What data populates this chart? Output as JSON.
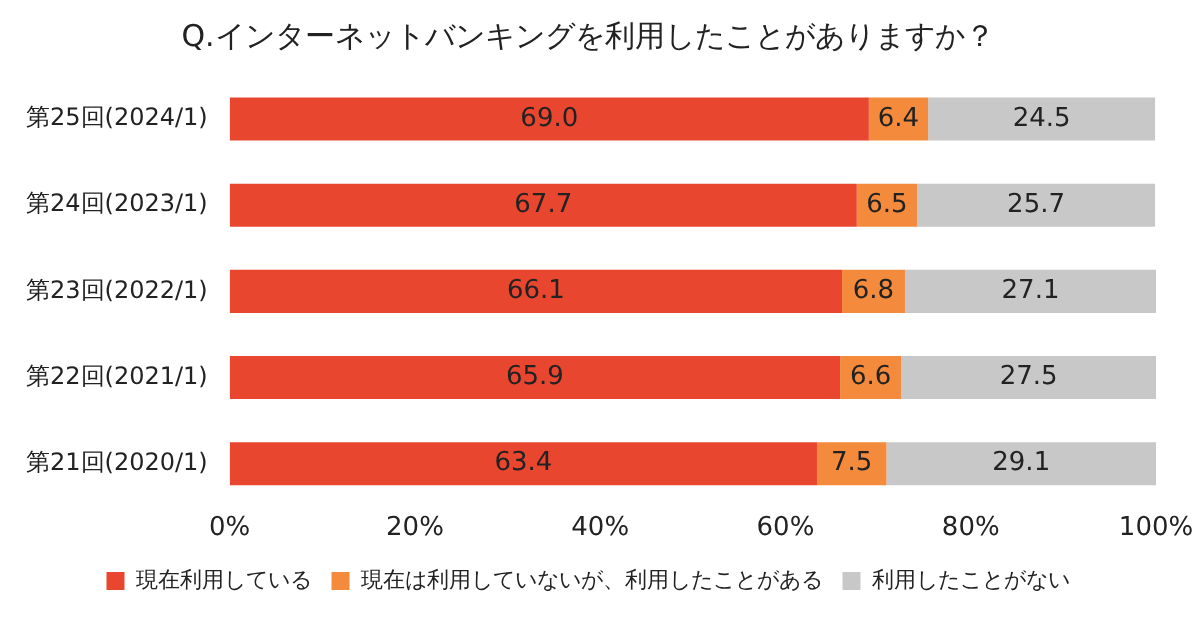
{
  "chart_data": {
    "type": "bar",
    "orientation": "horizontal",
    "stacked": true,
    "title": "Q.インターネットバンキングを利用したことがありますか？",
    "categories": [
      "第25回(2024/1)",
      "第24回(2023/1)",
      "第23回(2022/1)",
      "第22回(2021/1)",
      "第21回(2020/1)"
    ],
    "series": [
      {
        "name": "現在利用している",
        "color": "#e8462f",
        "values": [
          69.0,
          67.7,
          66.1,
          65.9,
          63.4
        ]
      },
      {
        "name": "現在は利用していないが、利用したことがある",
        "color": "#f38a3c",
        "values": [
          6.4,
          6.5,
          6.8,
          6.6,
          7.5
        ]
      },
      {
        "name": "利用したことがない",
        "color": "#c8c8c8",
        "values": [
          24.5,
          25.7,
          27.1,
          27.5,
          29.1
        ]
      }
    ],
    "value_labels": [
      [
        "69.0",
        "67.7",
        "66.1",
        "65.9",
        "63.4"
      ],
      [
        "6.4",
        "6.5",
        "6.8",
        "6.6",
        "7.5"
      ],
      [
        "24.5",
        "25.7",
        "27.1",
        "27.5",
        "29.1"
      ]
    ],
    "xlim": [
      0,
      100
    ],
    "xticks": [
      {
        "value": 0,
        "label": "0%"
      },
      {
        "value": 20,
        "label": "20%"
      },
      {
        "value": 40,
        "label": "40%"
      },
      {
        "value": 60,
        "label": "60%"
      },
      {
        "value": 80,
        "label": "80%"
      },
      {
        "value": 100,
        "label": "100%"
      }
    ],
    "grid": false,
    "legend": "bottom"
  }
}
